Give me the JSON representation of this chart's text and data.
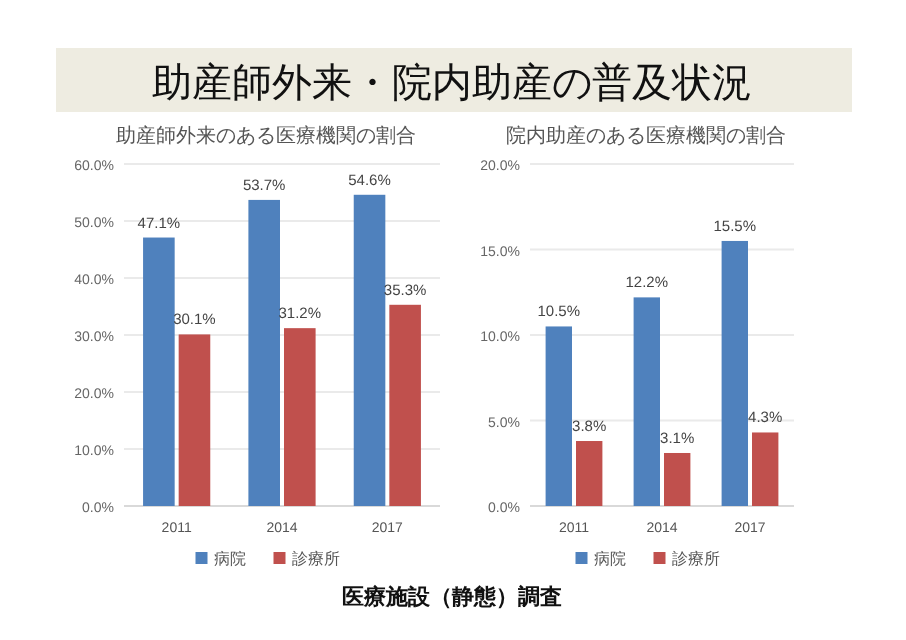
{
  "chart_data": [
    {
      "type": "bar",
      "title": "助産師外来のある医療機関の割合",
      "annotations": [
        "助産師外来・院内助産の普及状況"
      ],
      "categories": [
        "2011",
        "2014",
        "2017"
      ],
      "series": [
        {
          "name": "病院",
          "color": "#4f81bd",
          "values": [
            47.1,
            53.7,
            54.6
          ],
          "value_labels": [
            "47.1%",
            "53.7%",
            "54.6%"
          ]
        },
        {
          "name": "診療所",
          "color": "#c0504d",
          "values": [
            30.1,
            31.2,
            35.3
          ],
          "value_labels": [
            "30.1%",
            "31.2%",
            "35.3%"
          ]
        }
      ],
      "ylim": [
        0,
        60
      ],
      "yticks": [
        {
          "value": 0,
          "label": "0.0%"
        },
        {
          "value": 10,
          "label": "10.0%"
        },
        {
          "value": 20,
          "label": "20.0%"
        },
        {
          "value": 30,
          "label": "30.0%"
        },
        {
          "value": 40,
          "label": "40.0%"
        },
        {
          "value": 50,
          "label": "50.0%"
        },
        {
          "value": 60,
          "label": "60.0%"
        }
      ],
      "grid": "y",
      "legend": "bottom"
    },
    {
      "type": "bar",
      "title": "院内助産のある医療機関の割合",
      "annotations": [
        "医療施設（静態）調査"
      ],
      "categories": [
        "2011",
        "2014",
        "2017"
      ],
      "series": [
        {
          "name": "病院",
          "color": "#4f81bd",
          "values": [
            10.5,
            12.2,
            15.5
          ],
          "value_labels": [
            "10.5%",
            "12.2%",
            "15.5%"
          ]
        },
        {
          "name": "診療所",
          "color": "#c0504d",
          "values": [
            3.8,
            3.1,
            4.3
          ],
          "value_labels": [
            "3.8%",
            "3.1%",
            "4.3%"
          ]
        }
      ],
      "ylim": [
        0,
        20
      ],
      "yticks": [
        {
          "value": 0,
          "label": "0.0%"
        },
        {
          "value": 5,
          "label": "5.0%"
        },
        {
          "value": 10,
          "label": "10.0%"
        },
        {
          "value": 15,
          "label": "15.0%"
        },
        {
          "value": 20,
          "label": "20.0%"
        }
      ],
      "grid": "y",
      "legend": "bottom"
    }
  ]
}
